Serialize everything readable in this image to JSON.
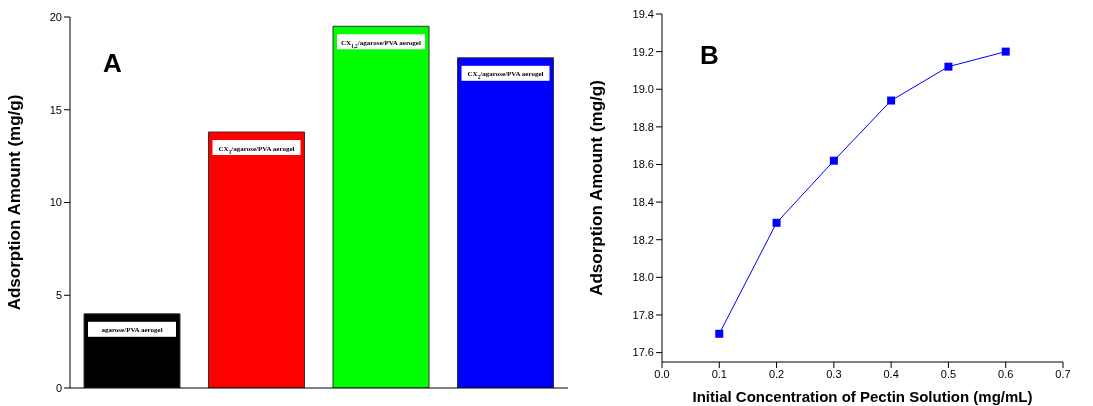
{
  "chart_data": [
    {
      "type": "bar",
      "title": "A",
      "ylabel": "Adsorption Amount (mg/g)",
      "categories": [
        "agarose/PVA aerogel",
        "CX$_{1}$/agarose/PVA aerogel",
        "CX$_{1,2}$/agarose/PVA aerogel",
        "CX$_{2}$/agarose/PVA aerogel"
      ],
      "values": [
        4.0,
        13.8,
        19.5,
        17.8
      ],
      "colors": [
        "#000000",
        "#ff0000",
        "#00ff00",
        "#0000ff"
      ],
      "ylim": [
        0,
        20
      ],
      "yticks": [
        0,
        5,
        10,
        15,
        20
      ],
      "tick_labels": "y"
    },
    {
      "type": "line",
      "title": "B",
      "xlabel": "Initial Concentration of Pectin Solution (mg/mL)",
      "ylabel": "Adsorption Amount (mg/g)",
      "x": [
        0.1,
        0.2,
        0.3,
        0.4,
        0.5,
        0.6
      ],
      "values": [
        17.7,
        18.29,
        18.62,
        18.94,
        19.12,
        19.2
      ],
      "color": "#0000ff",
      "marker": "square",
      "xlim": [
        0,
        0.7
      ],
      "xticks": [
        {
          "value": 0,
          "label": "0.0"
        },
        0.1,
        0.2,
        0.3,
        0.4,
        0.5,
        0.6,
        0.7
      ],
      "ylim": [
        17.55,
        19.4
      ],
      "yticks": [
        17.6,
        17.8,
        {
          "value": 18,
          "label": "18.0"
        },
        18.2,
        18.4,
        18.6,
        18.8,
        {
          "value": 19,
          "label": "19.0"
        },
        19.2,
        19.4
      ]
    }
  ]
}
